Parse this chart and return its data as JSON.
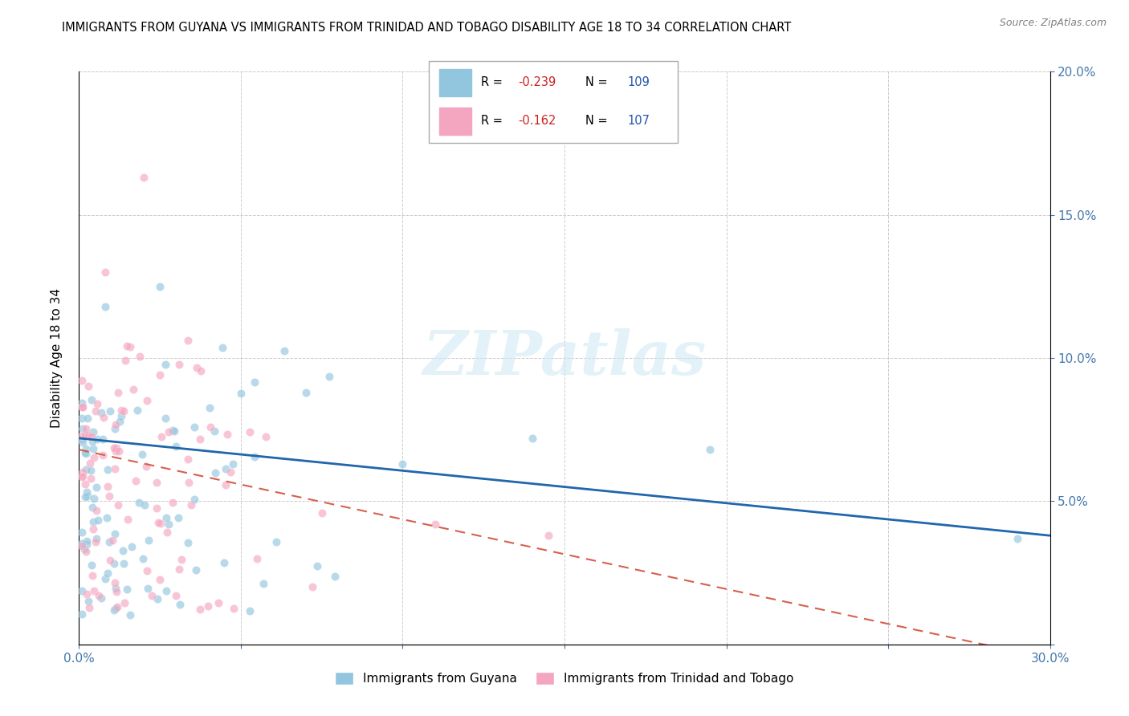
{
  "title": "IMMIGRANTS FROM GUYANA VS IMMIGRANTS FROM TRINIDAD AND TOBAGO DISABILITY AGE 18 TO 34 CORRELATION CHART",
  "source": "Source: ZipAtlas.com",
  "ylabel": "Disability Age 18 to 34",
  "xlim": [
    0.0,
    0.3
  ],
  "ylim": [
    0.0,
    0.2
  ],
  "xticks": [
    0.0,
    0.05,
    0.1,
    0.15,
    0.2,
    0.25,
    0.3
  ],
  "yticks": [
    0.0,
    0.05,
    0.1,
    0.15,
    0.2
  ],
  "color_blue": "#92c5de",
  "color_pink": "#f4a6c0",
  "line_color_blue": "#2166ac",
  "line_color_pink": "#d6604d",
  "watermark": "ZIPatlas",
  "bottom_label1": "Immigrants from Guyana",
  "bottom_label2": "Immigrants from Trinidad and Tobago",
  "R_blue": "-0.239",
  "N_blue": "109",
  "R_pink": "-0.162",
  "N_pink": "107",
  "blue_trend_start": 0.072,
  "blue_trend_end": 0.038,
  "pink_trend_start": 0.068,
  "pink_trend_end": -0.005
}
